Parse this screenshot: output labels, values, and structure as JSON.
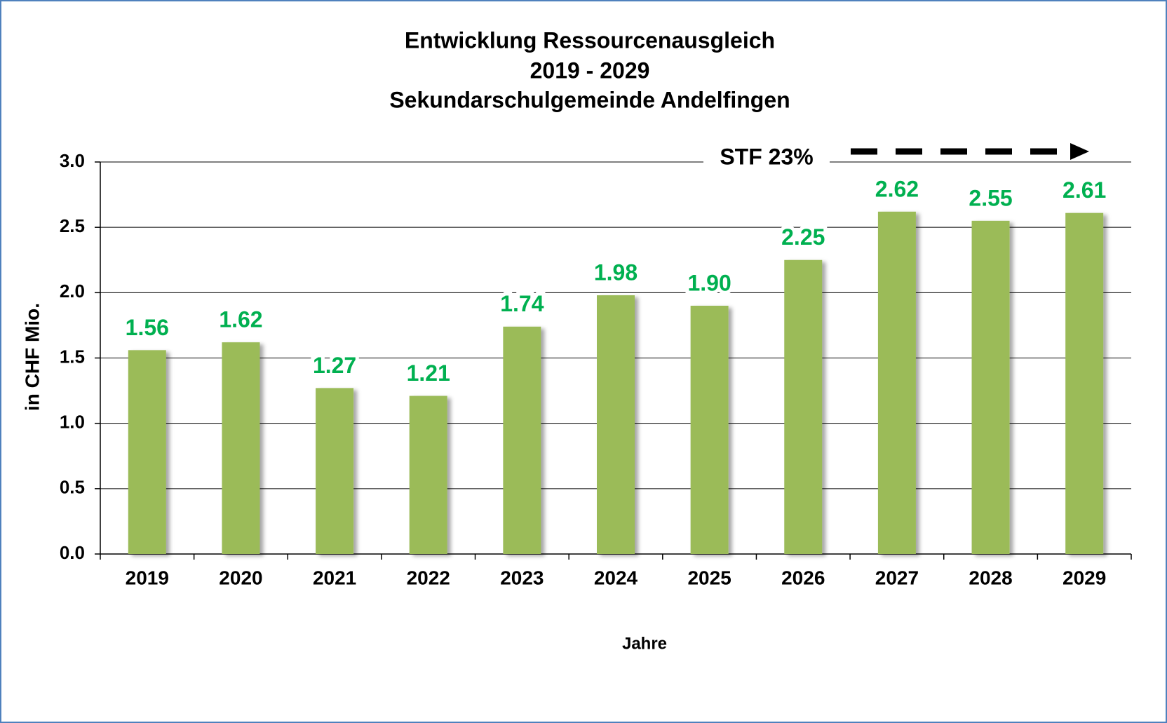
{
  "chart_data": {
    "type": "bar",
    "title": [
      "Entwicklung Ressourcenausgleich",
      "2019 - 2029",
      "Sekundarschulgemeinde Andelfingen"
    ],
    "annotation": "STF 23%",
    "x_label": "Jahre",
    "y_label": "in CHF Mio.",
    "categories": [
      "2019",
      "2020",
      "2021",
      "2022",
      "2023",
      "2024",
      "2025",
      "2026",
      "2027",
      "2028",
      "2029"
    ],
    "values": [
      1.56,
      1.62,
      1.27,
      1.21,
      1.74,
      1.98,
      1.9,
      2.25,
      2.62,
      2.55,
      2.61
    ],
    "value_labels": [
      "1.56",
      "1.62",
      "1.27",
      "1.21",
      "1.74",
      "1.98",
      "1.90",
      "2.25",
      "2.62",
      "2.55",
      "2.61"
    ],
    "color": "#9bbb59",
    "label_color": "#00b050",
    "ylim": [
      0,
      3
    ],
    "yticks": [
      {
        "value": 0,
        "label": "0.0"
      },
      0.5,
      {
        "value": 1,
        "label": "1.0"
      },
      1.5,
      {
        "value": 2,
        "label": "2.0"
      },
      2.5,
      {
        "value": 3,
        "label": "3.0"
      }
    ],
    "grid": true
  }
}
